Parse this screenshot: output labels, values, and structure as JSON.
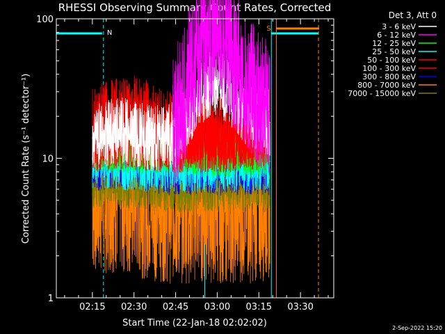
{
  "chart_data": {
    "type": "line",
    "title": "RHESSI Observing Summary Count Rates, Corrected",
    "xlabel": "Start Time (22-Jan-18 02:02:02)",
    "ylabel": "Corrected Count Rate (s⁻¹ detector⁻¹)",
    "yscale": "log",
    "ylim": [
      1,
      100
    ],
    "xlim_minutes": [
      0,
      100
    ],
    "yticks": [
      1,
      10,
      100
    ],
    "ytick_labels": [
      "1",
      "10",
      "100"
    ],
    "xticks_minutes": [
      13,
      28,
      43,
      58,
      73,
      88
    ],
    "xtick_labels": [
      "02:15",
      "02:30",
      "02:45",
      "03:00",
      "03:15",
      "03:30"
    ],
    "legend_title": "Det 3, Att 0",
    "legend_position": "right",
    "series": [
      {
        "name": "3 - 6 keV",
        "color": "#ffffff",
        "t": [
          13,
          18,
          23,
          28,
          33,
          38,
          43,
          46,
          50,
          54,
          58,
          62,
          66,
          70,
          74,
          77
        ],
        "y": [
          14,
          15,
          16,
          15,
          14,
          14,
          15,
          18,
          26,
          33,
          36,
          30,
          24,
          20,
          19,
          18
        ]
      },
      {
        "name": "6 - 12 keV",
        "color": "#ff00ff",
        "t": [
          42,
          46,
          50,
          54,
          57,
          60,
          64,
          68,
          72,
          76,
          77
        ],
        "y": [
          17,
          28,
          50,
          68,
          82,
          72,
          52,
          38,
          28,
          22,
          20
        ]
      },
      {
        "name": "12 - 25 keV",
        "color": "#00ff00",
        "t": [
          13,
          20,
          30,
          40,
          50,
          60,
          70,
          77
        ],
        "y": [
          12,
          12,
          11.5,
          11.5,
          11,
          11,
          11,
          11
        ]
      },
      {
        "name": "25 - 50 keV",
        "color": "#00ffff",
        "t": [
          13,
          20,
          30,
          40,
          50,
          60,
          70,
          77
        ],
        "y": [
          10,
          10,
          9.5,
          9.5,
          9.5,
          9.5,
          9.5,
          9.5
        ]
      },
      {
        "name": "50 - 100 keV",
        "color": "#ff0000",
        "t": [
          13,
          18,
          23,
          28,
          33,
          38,
          43,
          48,
          53,
          58,
          63,
          68,
          73,
          77
        ],
        "y": [
          17,
          19,
          20,
          21,
          19,
          17,
          15,
          15,
          15,
          15,
          15,
          16,
          17,
          17
        ]
      },
      {
        "name": "100 - 300 keV",
        "color": "#ff0000",
        "t": [
          13,
          20,
          30,
          40,
          50,
          60,
          70,
          77
        ],
        "y": [
          12.5,
          13,
          13,
          12.5,
          12.5,
          12.5,
          13,
          13
        ]
      },
      {
        "name": "300 - 800 keV",
        "color": "#0000ff",
        "t": [
          13,
          20,
          30,
          40,
          50,
          60,
          70,
          77
        ],
        "y": [
          9.5,
          10,
          9.5,
          9,
          9,
          9,
          9,
          9
        ]
      },
      {
        "name": "800 - 7000 keV",
        "color": "#ff8000",
        "t": [
          13,
          20,
          30,
          40,
          50,
          60,
          70,
          77
        ],
        "y": [
          5.5,
          6,
          5.5,
          5,
          5,
          5,
          5,
          5.2
        ]
      },
      {
        "name": "7000 - 15000 keV",
        "color": "#808000",
        "t": [
          13,
          20,
          30,
          40,
          50,
          60,
          70,
          77
        ],
        "y": [
          7,
          7,
          6.8,
          6.5,
          6.5,
          6.5,
          6.5,
          6.5
        ]
      }
    ],
    "annotations": [
      {
        "text": "N",
        "color": "#00ffff"
      },
      {
        "text": "S",
        "color": "#ff8000"
      }
    ],
    "timestamp": "2-Sep-2022 15:20"
  }
}
